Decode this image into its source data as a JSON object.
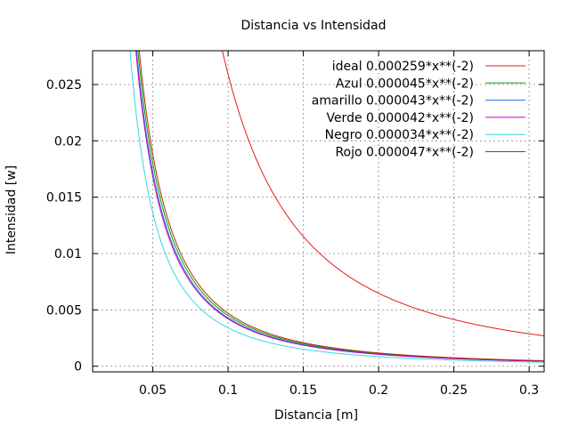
{
  "chart_data": {
    "type": "line",
    "title": "Distancia vs Intensidad",
    "xlabel": "Distancia [m]",
    "ylabel": "Intensidad [w]",
    "xlim": [
      0.01,
      0.31
    ],
    "ylim": [
      -0.0005,
      0.028
    ],
    "x_ticks": [
      0.05,
      0.1,
      0.15,
      0.2,
      0.25,
      0.3
    ],
    "x_tick_labels": [
      "0.05",
      "0.1",
      "0.15",
      "0.2",
      "0.25",
      "0.3"
    ],
    "y_ticks": [
      0,
      0.005,
      0.01,
      0.015,
      0.02,
      0.025
    ],
    "y_tick_labels": [
      "0",
      "0.005",
      "0.01",
      "0.015",
      "0.02",
      "0.025"
    ],
    "grid": true,
    "legend_position": "top-right",
    "series": [
      {
        "name": "ideal 0.000259*x**(-2)",
        "coefficient": 0.000259,
        "exponent": -2,
        "color": "#e41a1c"
      },
      {
        "name": "Azul 0.000045*x**(-2)",
        "coefficient": 4.5e-05,
        "exponent": -2,
        "color": "#00a000"
      },
      {
        "name": "amarillo 0.000043*x**(-2)",
        "coefficient": 4.3e-05,
        "exponent": -2,
        "color": "#2a6ef2"
      },
      {
        "name": "Verde 0.000042*x**(-2)",
        "coefficient": 4.2e-05,
        "exponent": -2,
        "color": "#c000c0"
      },
      {
        "name": "Negro 0.000034*x**(-2)",
        "coefficient": 3.4e-05,
        "exponent": -2,
        "color": "#33d6e6"
      },
      {
        "name": "Rojo 0.000047*x**(-2)",
        "coefficient": 4.7e-05,
        "exponent": -2,
        "color": "#b03000"
      }
    ]
  }
}
